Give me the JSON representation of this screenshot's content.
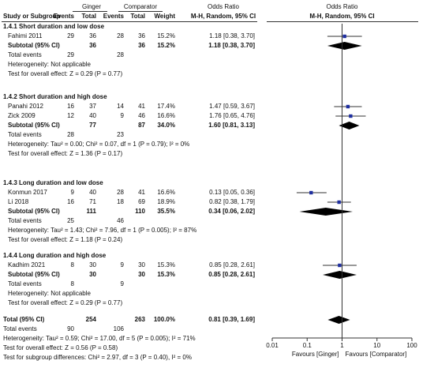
{
  "header": {
    "group1": "Ginger",
    "group2": "Comparator",
    "odds_ratio": "Odds Ratio",
    "odds_ratio_right": "Odds Ratio",
    "study": "Study or Subgroup",
    "events": "Events",
    "total": "Total",
    "weight": "Weight",
    "method": "M-H, Random, 95% CI",
    "method_right": "M-H, Random, 95% CI"
  },
  "labels": {
    "subtotal": "Subtotal (95% CI)",
    "total_events": "Total events",
    "overall_total": "Total (95% CI)"
  },
  "subgroups": [
    {
      "title": "1.4.1 Short duration and low dose",
      "studies": [
        {
          "name": "Fahimi 2011",
          "e1": "29",
          "n1": "36",
          "e2": "28",
          "n2": "36",
          "weight": "15.2%",
          "ci_text": "1.18 [0.38, 3.70]",
          "or": 1.18,
          "lo": 0.38,
          "hi": 3.7
        }
      ],
      "subtotal": {
        "n1": "36",
        "n2": "36",
        "weight": "15.2%",
        "ci_text": "1.18 [0.38, 3.70]",
        "or": 1.18,
        "lo": 0.38,
        "hi": 3.7
      },
      "total_events": {
        "e1": "29",
        "e2": "28"
      },
      "heterogeneity": "Heterogeneity: Not applicable",
      "overall_effect": "Test for overall effect: Z = 0.29 (P = 0.77)"
    },
    {
      "title": "1.4.2 Short duration and high dose",
      "studies": [
        {
          "name": "Panahi 2012",
          "e1": "16",
          "n1": "37",
          "e2": "14",
          "n2": "41",
          "weight": "17.4%",
          "ci_text": "1.47 [0.59, 3.67]",
          "or": 1.47,
          "lo": 0.59,
          "hi": 3.67
        },
        {
          "name": "Zick 2009",
          "e1": "12",
          "n1": "40",
          "e2": "9",
          "n2": "46",
          "weight": "16.6%",
          "ci_text": "1.76 [0.65, 4.76]",
          "or": 1.76,
          "lo": 0.65,
          "hi": 4.76
        }
      ],
      "subtotal": {
        "n1": "77",
        "n2": "87",
        "weight": "34.0%",
        "ci_text": "1.60 [0.81, 3.13]",
        "or": 1.6,
        "lo": 0.81,
        "hi": 3.13
      },
      "total_events": {
        "e1": "28",
        "e2": "23"
      },
      "heterogeneity": "Heterogeneity: Tau² = 0.00; Chi² = 0.07, df = 1 (P = 0.79); I² = 0%",
      "overall_effect": "Test for overall effect: Z = 1.36 (P = 0.17)"
    },
    {
      "title": "1.4.3 Long duration and low dose",
      "studies": [
        {
          "name": "Konmun 2017",
          "e1": "9",
          "n1": "40",
          "e2": "28",
          "n2": "41",
          "weight": "16.6%",
          "ci_text": "0.13 [0.05, 0.36]",
          "or": 0.13,
          "lo": 0.05,
          "hi": 0.36
        },
        {
          "name": "Li 2018",
          "e1": "16",
          "n1": "71",
          "e2": "18",
          "n2": "69",
          "weight": "18.9%",
          "ci_text": "0.82 [0.38, 1.79]",
          "or": 0.82,
          "lo": 0.38,
          "hi": 1.79
        }
      ],
      "subtotal": {
        "n1": "111",
        "n2": "110",
        "weight": "35.5%",
        "ci_text": "0.34 [0.06, 2.02]",
        "or": 0.34,
        "lo": 0.06,
        "hi": 2.02
      },
      "total_events": {
        "e1": "25",
        "e2": "46"
      },
      "heterogeneity": "Heterogeneity: Tau² = 1.43; Chi² = 7.96, df = 1 (P = 0.005); I² = 87%",
      "overall_effect": "Test for overall effect: Z = 1.18 (P = 0.24)"
    },
    {
      "title": "1.4.4 Long duration and high dose",
      "studies": [
        {
          "name": "Kadhim 2021",
          "e1": "8",
          "n1": "30",
          "e2": "9",
          "n2": "30",
          "weight": "15.3%",
          "ci_text": "0.85 [0.28, 2.61]",
          "or": 0.85,
          "lo": 0.28,
          "hi": 2.61
        }
      ],
      "subtotal": {
        "n1": "30",
        "n2": "30",
        "weight": "15.3%",
        "ci_text": "0.85 [0.28, 2.61]",
        "or": 0.85,
        "lo": 0.28,
        "hi": 2.61
      },
      "total_events": {
        "e1": "8",
        "e2": "9"
      },
      "heterogeneity": "Heterogeneity: Not applicable",
      "overall_effect": "Test for overall effect: Z = 0.29 (P = 0.77)"
    }
  ],
  "overall": {
    "n1": "254",
    "n2": "263",
    "weight": "100.0%",
    "ci_text": "0.81 [0.39, 1.69]",
    "or": 0.81,
    "lo": 0.39,
    "hi": 1.69,
    "total_events": {
      "e1": "90",
      "e2": "106"
    },
    "heterogeneity": "Heterogeneity: Tau² = 0.59; Chi² = 17.00, df = 5 (P = 0.005); I² = 71%",
    "overall_effect": "Test for overall effect: Z = 0.56 (P = 0.58)",
    "subgroup_diff": "Test for subgroup differences: Chi² = 2.97, df = 3 (P = 0.40), I² = 0%"
  },
  "axis": {
    "ticks": [
      {
        "value": 0.01,
        "label": "0.01"
      },
      {
        "value": 0.1,
        "label": "0.1"
      },
      {
        "value": 1,
        "label": "1"
      },
      {
        "value": 10,
        "label": "10"
      },
      {
        "value": 100,
        "label": "100"
      }
    ],
    "favours_left": "Favours [Ginger]",
    "favours_right": "Favours [Comparator]"
  },
  "colors": {
    "marker": "#1f2fa0",
    "diamond": "#000000",
    "text": "#111111"
  },
  "chart_data": {
    "type": "scatter",
    "x_scale": "log",
    "xlim": [
      0.01,
      100
    ],
    "xlabel": "",
    "ylabel": "",
    "reference_line": 1,
    "series": [
      {
        "name": "Fahimi 2011",
        "or": 1.18,
        "lo": 0.38,
        "hi": 3.7
      },
      {
        "name": "Panahi 2012",
        "or": 1.47,
        "lo": 0.59,
        "hi": 3.67
      },
      {
        "name": "Zick 2009",
        "or": 1.76,
        "lo": 0.65,
        "hi": 4.76
      },
      {
        "name": "Konmun 2017",
        "or": 0.13,
        "lo": 0.05,
        "hi": 0.36
      },
      {
        "name": "Li 2018",
        "or": 0.82,
        "lo": 0.38,
        "hi": 1.79
      },
      {
        "name": "Kadhim 2021",
        "or": 0.85,
        "lo": 0.28,
        "hi": 2.61
      }
    ],
    "pooled": [
      {
        "name": "Subtotal 1.4.1",
        "or": 1.18,
        "lo": 0.38,
        "hi": 3.7
      },
      {
        "name": "Subtotal 1.4.2",
        "or": 1.6,
        "lo": 0.81,
        "hi": 3.13
      },
      {
        "name": "Subtotal 1.4.3",
        "or": 0.34,
        "lo": 0.06,
        "hi": 2.02
      },
      {
        "name": "Subtotal 1.4.4",
        "or": 0.85,
        "lo": 0.28,
        "hi": 2.61
      },
      {
        "name": "Total (95% CI)",
        "or": 0.81,
        "lo": 0.39,
        "hi": 1.69
      }
    ]
  }
}
